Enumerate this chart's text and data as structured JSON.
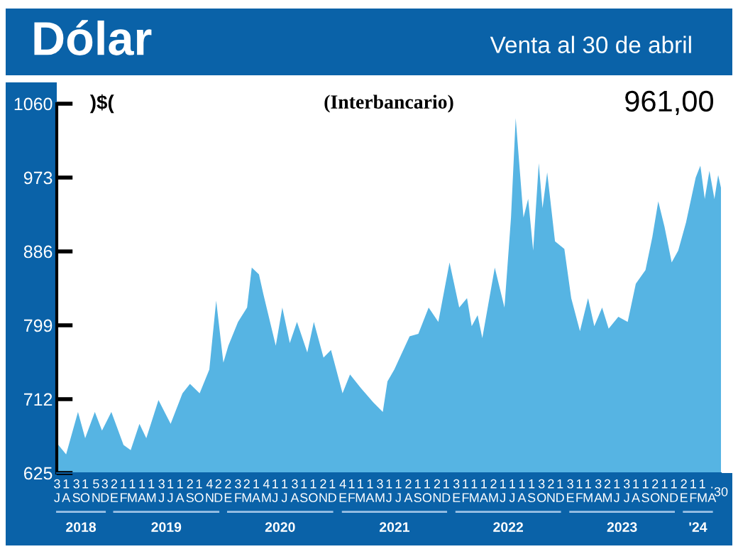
{
  "chart_data": {
    "type": "area",
    "title": "Dólar",
    "subtitle": "Venta al 30 de abril",
    "ylabel": ")$(",
    "annotations": [
      "(Interbancario)",
      "961,00",
      "2018",
      "2019",
      "2020",
      "2021",
      "2022",
      "2023",
      "'24"
    ],
    "x": [
      "2018-07-03",
      "2018-08-01",
      "2018-09-08",
      "2018-10-01",
      "2018-11-01",
      "2018-11-24",
      "2018-12-24",
      "2019-02-01",
      "2019-02-24",
      "2019-03-24",
      "2019-04-15",
      "2019-05-24",
      "2019-07-02",
      "2019-08-09",
      "2019-09-02",
      "2019-10-03",
      "2019-11-03",
      "2019-11-25",
      "2019-12-18",
      "2020-01-03",
      "2020-02-03",
      "2020-03-03",
      "2020-03-18",
      "2020-04-10",
      "2020-04-24",
      "2020-06-03",
      "2020-06-24",
      "2020-07-18",
      "2020-08-10",
      "2020-09-12",
      "2020-10-03",
      "2020-11-03",
      "2020-11-27",
      "2021-01-03",
      "2021-01-27",
      "2021-03-03",
      "2021-04-12",
      "2021-05-12",
      "2021-05-27",
      "2021-06-18",
      "2021-08-06",
      "2021-09-03",
      "2021-10-06",
      "2021-11-06",
      "2021-12-12",
      "2022-01-12",
      "2022-02-06",
      "2022-02-21",
      "2022-03-12",
      "2022-03-27",
      "2022-05-06",
      "2022-06-06",
      "2022-06-27",
      "2022-07-12",
      "2022-08-06",
      "2022-08-21",
      "2022-09-06",
      "2022-09-24",
      "2022-10-06",
      "2022-10-21",
      "2022-11-15",
      "2022-12-15",
      "2023-01-06",
      "2023-02-03",
      "2023-03-01",
      "2023-03-21",
      "2023-04-15",
      "2023-05-06",
      "2023-06-06",
      "2023-07-06",
      "2023-08-01",
      "2023-09-01",
      "2023-09-23",
      "2023-10-12",
      "2023-11-01",
      "2023-11-24",
      "2023-12-15",
      "2024-01-09",
      "2024-02-09",
      "2024-02-24",
      "2024-03-09",
      "2024-03-24",
      "2024-04-09",
      "2024-04-21",
      "2024-04-30"
    ],
    "series": [
      {
        "color": "#56b4e3",
        "values": [
          660,
          647,
          697,
          666,
          697,
          675,
          697,
          658,
          652,
          683,
          666,
          711,
          683,
          719,
          730,
          719,
          747,
          828,
          755,
          775,
          803,
          820,
          867,
          859,
          836,
          775,
          820,
          778,
          803,
          767,
          803,
          761,
          770,
          719,
          741,
          725,
          708,
          697,
          733,
          747,
          786,
          789,
          820,
          803,
          873,
          820,
          831,
          798,
          811,
          784,
          867,
          820,
          926,
          1043,
          926,
          948,
          887,
          990,
          937,
          979,
          898,
          889,
          831,
          792,
          831,
          798,
          820,
          795,
          809,
          803,
          848,
          864,
          903,
          945,
          915,
          873,
          887,
          920,
          973,
          987,
          948,
          981,
          948,
          976,
          961
        ]
      }
    ],
    "xlim": [
      "2018-07-02",
      "2024-04-30"
    ],
    "ylim": [
      625,
      1060
    ],
    "yticks": [
      625,
      712,
      799,
      886,
      973,
      1060
    ],
    "xticks": [
      {
        "value": "2018-07-03",
        "label": "3\nJ"
      },
      {
        "value": "2018-08-01",
        "label": "1\nA"
      },
      {
        "value": "2018-09-03",
        "label": "3\nS"
      },
      {
        "value": "2018-10-01",
        "label": "1\nO"
      },
      {
        "value": "2018-11-05",
        "label": "5\nN"
      },
      {
        "value": "2018-12-03",
        "label": "3\nD"
      },
      {
        "value": "2019-01-02",
        "label": "2\nE"
      },
      {
        "value": "2019-02-01",
        "label": "1\nF"
      },
      {
        "value": "2019-03-01",
        "label": "1\nM"
      },
      {
        "value": "2019-04-01",
        "label": "1\nA"
      },
      {
        "value": "2019-05-01",
        "label": "1\nM"
      },
      {
        "value": "2019-06-03",
        "label": "3\nJ"
      },
      {
        "value": "2019-07-01",
        "label": "1\nJ"
      },
      {
        "value": "2019-08-01",
        "label": "1\nA"
      },
      {
        "value": "2019-09-02",
        "label": "2\nS"
      },
      {
        "value": "2019-10-01",
        "label": "1\nO"
      },
      {
        "value": "2019-11-04",
        "label": "4\nN"
      },
      {
        "value": "2019-12-02",
        "label": "2\nD"
      },
      {
        "value": "2020-01-02",
        "label": "2\nE"
      },
      {
        "value": "2020-02-03",
        "label": "3\nF"
      },
      {
        "value": "2020-03-02",
        "label": "2\nM"
      },
      {
        "value": "2020-04-01",
        "label": "1\nA"
      },
      {
        "value": "2020-05-04",
        "label": "4\nM"
      },
      {
        "value": "2020-06-01",
        "label": "1\nJ"
      },
      {
        "value": "2020-07-01",
        "label": "1\nJ"
      },
      {
        "value": "2020-08-03",
        "label": "3\nA"
      },
      {
        "value": "2020-09-01",
        "label": "1\nS"
      },
      {
        "value": "2020-10-01",
        "label": "1\nO"
      },
      {
        "value": "2020-11-02",
        "label": "2\nN"
      },
      {
        "value": "2020-12-01",
        "label": "1\nD"
      },
      {
        "value": "2021-01-04",
        "label": "4\nE"
      },
      {
        "value": "2021-02-01",
        "label": "1\nF"
      },
      {
        "value": "2021-03-01",
        "label": "1\nM"
      },
      {
        "value": "2021-04-01",
        "label": "1\nA"
      },
      {
        "value": "2021-05-03",
        "label": "3\nM"
      },
      {
        "value": "2021-06-01",
        "label": "1\nJ"
      },
      {
        "value": "2021-07-01",
        "label": "1\nJ"
      },
      {
        "value": "2021-08-02",
        "label": "2\nA"
      },
      {
        "value": "2021-09-01",
        "label": "1\nS"
      },
      {
        "value": "2021-10-01",
        "label": "1\nO"
      },
      {
        "value": "2021-11-02",
        "label": "2\nN"
      },
      {
        "value": "2021-12-01",
        "label": "1\nD"
      },
      {
        "value": "2022-01-03",
        "label": "3\nE"
      },
      {
        "value": "2022-02-01",
        "label": "1\nF"
      },
      {
        "value": "2022-03-01",
        "label": "1\nM"
      },
      {
        "value": "2022-04-01",
        "label": "1\nA"
      },
      {
        "value": "2022-05-02",
        "label": "2\nM"
      },
      {
        "value": "2022-06-01",
        "label": "1\nJ"
      },
      {
        "value": "2022-07-01",
        "label": "1\nJ"
      },
      {
        "value": "2022-08-01",
        "label": "1\nA"
      },
      {
        "value": "2022-09-01",
        "label": "1\nS"
      },
      {
        "value": "2022-10-03",
        "label": "3\nO"
      },
      {
        "value": "2022-11-02",
        "label": "2\nN"
      },
      {
        "value": "2022-12-01",
        "label": "1\nD"
      },
      {
        "value": "2023-01-03",
        "label": "3\nE"
      },
      {
        "value": "2023-02-01",
        "label": "1\nF"
      },
      {
        "value": "2023-03-01",
        "label": "1\nM"
      },
      {
        "value": "2023-04-03",
        "label": "3\nA"
      },
      {
        "value": "2023-05-02",
        "label": "2\nM"
      },
      {
        "value": "2023-06-01",
        "label": "1\nJ"
      },
      {
        "value": "2023-07-03",
        "label": "3\nJ"
      },
      {
        "value": "2023-08-01",
        "label": "1\nA"
      },
      {
        "value": "2023-09-01",
        "label": "1\nS"
      },
      {
        "value": "2023-10-02",
        "label": "2\nO"
      },
      {
        "value": "2023-11-01",
        "label": "1\nN"
      },
      {
        "value": "2023-12-01",
        "label": "1\nD"
      },
      {
        "value": "2024-01-02",
        "label": "2\nE"
      },
      {
        "value": "2024-02-01",
        "label": "1\nF"
      },
      {
        "value": "2024-03-01",
        "label": "1\nM"
      },
      {
        "value": "2024-04-01",
        "label": ".\nA"
      },
      {
        "value": "2024-04-30",
        "label": "30"
      }
    ],
    "grid": false,
    "legend": false
  }
}
